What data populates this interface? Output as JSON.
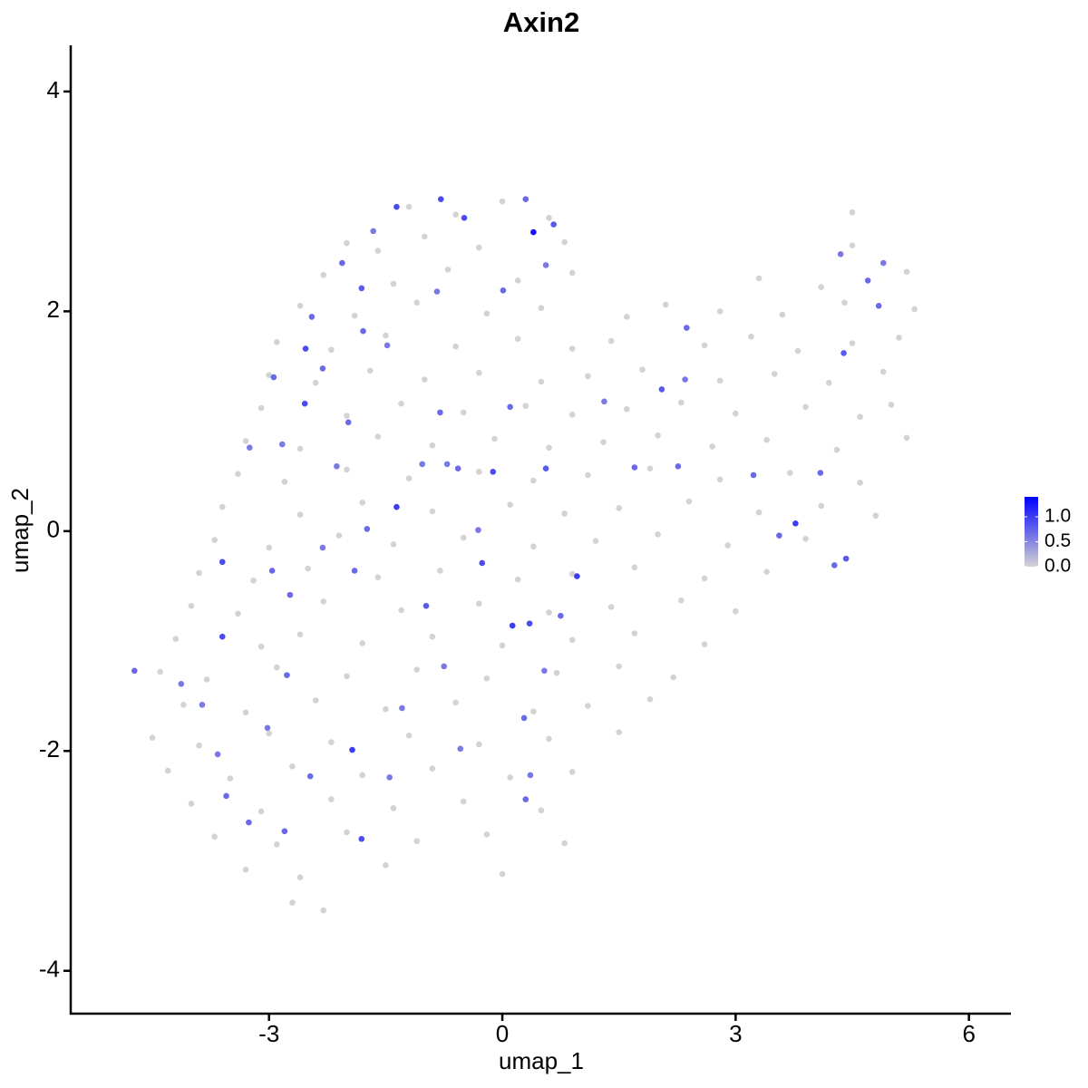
{
  "chart_data": {
    "type": "scatter",
    "title": "Axin2",
    "xlabel": "umap_1",
    "ylabel": "umap_2",
    "xlim": [
      -5.55,
      6.54
    ],
    "ylim": [
      -4.39,
      4.42
    ],
    "xticks": [
      -3,
      0,
      3,
      6
    ],
    "yticks": [
      -4,
      -2,
      0,
      2,
      4
    ],
    "colorbar": {
      "lim": [
        0,
        1.4
      ],
      "ticks": [
        {
          "value": 0,
          "label": "0.0"
        },
        {
          "value": 0.5,
          "label": "0.5"
        },
        {
          "value": 1,
          "label": "1.0"
        }
      ],
      "low_color": "#d3d3d3",
      "high_color": "#0000ff"
    },
    "x": [
      -1.2,
      -0.6,
      0,
      0.6,
      4.5,
      -2,
      -1.6,
      -1,
      -0.3,
      0.8,
      4.5,
      -2.3,
      -1.4,
      -0.7,
      0.2,
      0.9,
      3.3,
      4.1,
      5.2,
      -2.6,
      -1.9,
      -1.1,
      -0.2,
      0.5,
      1.6,
      2.1,
      2.8,
      3.6,
      4.4,
      5.3,
      -2.9,
      -2.2,
      -1.5,
      -0.6,
      0.2,
      0.9,
      1.4,
      2.6,
      3.2,
      3.8,
      4.5,
      5.1,
      -3,
      -2.4,
      -1.7,
      -1,
      -0.3,
      0.5,
      1.1,
      1.8,
      2.8,
      3.5,
      4.2,
      4.9,
      -3.1,
      -2,
      -1.3,
      -0.5,
      0.3,
      0.9,
      1.6,
      2.3,
      3,
      3.9,
      4.6,
      5,
      -3.3,
      -2.6,
      -1.6,
      -0.9,
      -0.1,
      0.6,
      1.3,
      2,
      2.7,
      3.4,
      4.3,
      5.2,
      -3.4,
      -2.8,
      -2,
      -1.2,
      -0.3,
      0.4,
      1.1,
      1.9,
      2.8,
      3.7,
      4.6,
      -3.6,
      -2.6,
      -1.8,
      -0.9,
      0.1,
      0.8,
      1.5,
      2.4,
      3.3,
      4.1,
      4.8,
      -3.7,
      -3,
      -2.1,
      -1.4,
      -0.5,
      0.4,
      1.2,
      2,
      2.9,
      3.9,
      -3.9,
      -3.2,
      -2.5,
      -1.6,
      -0.8,
      0.2,
      0.9,
      1.7,
      2.6,
      3.4,
      -4,
      -3.4,
      -2.3,
      -1.3,
      -0.3,
      0.6,
      1.4,
      2.3,
      3,
      -4.2,
      -3.1,
      -2.6,
      -1.8,
      -0.9,
      0,
      0.9,
      1.7,
      2.6,
      -4.4,
      -3.8,
      -2.9,
      -2,
      -1.1,
      -0.2,
      0.7,
      1.5,
      2.2,
      -4.1,
      -3.3,
      -2.4,
      -1.5,
      -0.6,
      0.4,
      1.1,
      1.9,
      -4.5,
      -3.9,
      -3,
      -2.2,
      -1.2,
      -0.3,
      0.6,
      1.5,
      -4.3,
      -3.5,
      -2.7,
      -1.8,
      -0.9,
      0.1,
      0.9,
      -4,
      -3.1,
      -2.2,
      -1.4,
      -0.5,
      0.5,
      -3.7,
      -2.9,
      -2,
      -1.1,
      -0.2,
      0.8,
      -3.3,
      -2.6,
      -1.5,
      0,
      -2.7,
      -2.3,
      -4.73,
      -3.6,
      -3.6,
      -4.13,
      -3.86,
      -3.66,
      -3.55,
      -3.26,
      -2.8,
      -2.47,
      -1.93,
      -1.81,
      -3.02,
      -2.77,
      -2.96,
      -2.73,
      -2.31,
      -1.9,
      -1.36,
      -1.74,
      -0.98,
      -0.75,
      -1.29,
      -1.45,
      -0.54,
      0.3,
      0.36,
      0.28,
      0.54,
      0.13,
      0.35,
      0.75,
      0.96,
      -0.26,
      -0.31,
      -0.12,
      -0.57,
      -0.71,
      -1.03,
      -0.8,
      0.1,
      0.56,
      1.7,
      1.31,
      2.05,
      2.35,
      2.37,
      2.26,
      3.23,
      3.77,
      3.56,
      4.27,
      4.42,
      4.09,
      4.39,
      4.84,
      4.7,
      4.35,
      4.9,
      0.4,
      0.66,
      0.3,
      -0.49,
      -0.79,
      -1.36,
      -1.66,
      -2.06,
      -1.81,
      -2.45,
      -2.53,
      -1.79,
      -2.31,
      -2.54,
      -2.94,
      -3.25,
      -2.83,
      -1.98,
      -2.13,
      0.01,
      0.56,
      -1.48,
      -0.84
    ],
    "y": [
      2.95,
      2.88,
      3.0,
      2.85,
      2.9,
      2.62,
      2.55,
      2.68,
      2.58,
      2.63,
      2.6,
      2.33,
      2.25,
      2.38,
      2.28,
      2.35,
      2.3,
      2.22,
      2.36,
      2.05,
      1.96,
      2.08,
      1.98,
      2.03,
      1.95,
      2.06,
      2.0,
      1.97,
      2.08,
      2.02,
      1.72,
      1.65,
      1.78,
      1.68,
      1.75,
      1.66,
      1.73,
      1.69,
      1.77,
      1.64,
      1.71,
      1.76,
      1.42,
      1.35,
      1.46,
      1.38,
      1.44,
      1.36,
      1.41,
      1.47,
      1.37,
      1.43,
      1.35,
      1.45,
      1.12,
      1.05,
      1.16,
      1.08,
      1.14,
      1.06,
      1.11,
      1.17,
      1.07,
      1.13,
      1.04,
      1.15,
      0.82,
      0.75,
      0.86,
      0.78,
      0.84,
      0.76,
      0.81,
      0.87,
      0.77,
      0.83,
      0.74,
      0.85,
      0.52,
      0.45,
      0.56,
      0.48,
      0.54,
      0.46,
      0.51,
      0.57,
      0.47,
      0.53,
      0.44,
      0.22,
      0.15,
      0.26,
      0.18,
      0.24,
      0.16,
      0.21,
      0.27,
      0.17,
      0.23,
      0.14,
      -0.08,
      -0.15,
      -0.04,
      -0.12,
      -0.06,
      -0.14,
      -0.09,
      -0.03,
      -0.13,
      -0.07,
      -0.38,
      -0.45,
      -0.34,
      -0.42,
      -0.36,
      -0.44,
      -0.39,
      -0.33,
      -0.43,
      -0.37,
      -0.68,
      -0.75,
      -0.64,
      -0.72,
      -0.66,
      -0.74,
      -0.69,
      -0.63,
      -0.73,
      -0.98,
      -1.05,
      -0.94,
      -1.02,
      -0.96,
      -1.04,
      -0.99,
      -0.93,
      -1.03,
      -1.28,
      -1.35,
      -1.24,
      -1.32,
      -1.26,
      -1.34,
      -1.29,
      -1.23,
      -1.33,
      -1.58,
      -1.65,
      -1.54,
      -1.62,
      -1.56,
      -1.64,
      -1.59,
      -1.53,
      -1.88,
      -1.95,
      -1.84,
      -1.92,
      -1.86,
      -1.94,
      -1.89,
      -1.83,
      -2.18,
      -2.25,
      -2.14,
      -2.22,
      -2.16,
      -2.24,
      -2.19,
      -2.48,
      -2.55,
      -2.44,
      -2.52,
      -2.46,
      -2.54,
      -2.78,
      -2.85,
      -2.74,
      -2.82,
      -2.76,
      -2.84,
      -3.08,
      -3.15,
      -3.04,
      -3.12,
      -3.38,
      -3.45,
      -1.27,
      -0.28,
      -0.96,
      -1.39,
      -1.58,
      -2.03,
      -2.41,
      -2.65,
      -2.73,
      -2.23,
      -1.99,
      -2.8,
      -1.79,
      -1.31,
      -0.36,
      -0.58,
      -0.15,
      -0.36,
      0.22,
      0.02,
      -0.68,
      -1.23,
      -1.61,
      -2.24,
      -1.98,
      -2.44,
      -2.22,
      -1.7,
      -1.27,
      -0.86,
      -0.84,
      -0.77,
      -0.41,
      -0.29,
      0.01,
      0.54,
      0.57,
      0.61,
      0.61,
      1.08,
      1.13,
      0.57,
      0.58,
      1.18,
      1.29,
      1.38,
      1.85,
      0.59,
      0.51,
      0.07,
      -0.04,
      -0.31,
      -0.25,
      0.53,
      1.62,
      2.05,
      2.28,
      2.52,
      2.44,
      2.72,
      2.79,
      3.02,
      2.85,
      3.02,
      2.95,
      2.73,
      2.44,
      2.21,
      1.95,
      1.66,
      1.82,
      1.48,
      1.16,
      1.4,
      0.76,
      0.79,
      0.99,
      0.59,
      2.19,
      2.42,
      1.69,
      2.18
    ],
    "expression": [
      0,
      0,
      0,
      0,
      0,
      0,
      0,
      0,
      0,
      0,
      0,
      0,
      0,
      0,
      0,
      0,
      0,
      0,
      0,
      0,
      0,
      0,
      0,
      0,
      0,
      0,
      0,
      0,
      0,
      0,
      0,
      0,
      0,
      0,
      0,
      0,
      0,
      0,
      0,
      0,
      0,
      0,
      0,
      0,
      0,
      0,
      0,
      0,
      0,
      0,
      0,
      0,
      0,
      0,
      0,
      0,
      0,
      0,
      0,
      0,
      0,
      0,
      0,
      0,
      0,
      0,
      0,
      0,
      0,
      0,
      0,
      0,
      0,
      0,
      0,
      0,
      0,
      0,
      0,
      0,
      0,
      0,
      0,
      0,
      0,
      0,
      0,
      0,
      0,
      0,
      0,
      0,
      0,
      0,
      0,
      0,
      0,
      0,
      0,
      0,
      0,
      0,
      0,
      0,
      0,
      0,
      0,
      0,
      0,
      0,
      0,
      0,
      0,
      0,
      0,
      0,
      0,
      0,
      0,
      0,
      0,
      0,
      0,
      0,
      0,
      0,
      0,
      0,
      0,
      0,
      0,
      0,
      0,
      0,
      0,
      0,
      0,
      0,
      0,
      0,
      0,
      0,
      0,
      0,
      0,
      0,
      0,
      0,
      0,
      0,
      0,
      0,
      0,
      0,
      0,
      0,
      0,
      0,
      0,
      0,
      0,
      0,
      0,
      0,
      0,
      0,
      0,
      0,
      0,
      0,
      0,
      0,
      0,
      0,
      0,
      0,
      0,
      0,
      0,
      0,
      0,
      0,
      0,
      0,
      0,
      0,
      0,
      0,
      0.7,
      0.9,
      0.9,
      0.6,
      0.6,
      0.6,
      0.7,
      0.7,
      0.7,
      0.7,
      1.0,
      0.9,
      0.6,
      0.7,
      0.7,
      0.7,
      0.6,
      0.7,
      1.0,
      0.7,
      0.8,
      0.6,
      0.6,
      0.6,
      0.6,
      0.7,
      0.6,
      0.7,
      0.6,
      1.0,
      0.9,
      0.7,
      1.0,
      0.9,
      0.6,
      0.9,
      0.7,
      0.6,
      0.6,
      0.7,
      0.7,
      0.8,
      0.7,
      0.6,
      0.8,
      0.6,
      0.7,
      0.7,
      0.7,
      1.0,
      0.7,
      0.7,
      0.8,
      0.7,
      0.8,
      0.7,
      0.7,
      0.6,
      0.6,
      1.3,
      0.8,
      0.7,
      0.9,
      0.9,
      0.9,
      0.6,
      0.7,
      0.8,
      0.7,
      0.9,
      0.7,
      0.7,
      0.9,
      0.7,
      0.6,
      0.6,
      0.7,
      0.6,
      0.7,
      0.6,
      0.6,
      0.6
    ]
  }
}
